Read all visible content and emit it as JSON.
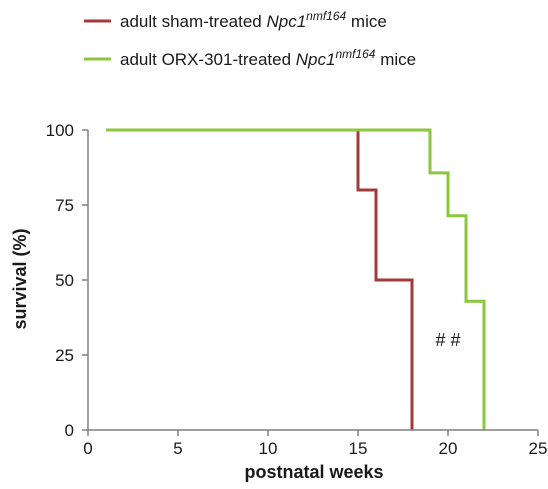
{
  "chart_data": {
    "type": "line",
    "step": true,
    "xlabel": "postnatal weeks",
    "ylabel": "survival (%)",
    "xlim": [
      0,
      25
    ],
    "ylim": [
      0,
      100
    ],
    "xticks": [
      0,
      5,
      10,
      15,
      20,
      25
    ],
    "yticks": [
      0,
      25,
      50,
      75,
      100
    ],
    "grid": false,
    "legend_position": "top-left",
    "series": [
      {
        "name": "adult sham-treated Npc1nmf164 mice",
        "label_prefix": "adult sham-treated ",
        "label_gene": "Npc1",
        "label_superscript": "nmf164",
        "label_suffix": " mice",
        "color": "#a33a3a",
        "x": [
          1,
          15,
          16,
          18
        ],
        "y": [
          100,
          80,
          50,
          0
        ]
      },
      {
        "name": "adult ORX-301-treated Npc1nmf164 mice",
        "label_prefix": "adult ORX-301-treated ",
        "label_gene": "Npc1",
        "label_superscript": "nmf164",
        "label_suffix": " mice",
        "color": "#8cc63e",
        "x": [
          1,
          19,
          20,
          21,
          22
        ],
        "y": [
          100,
          85.7,
          71.4,
          42.9,
          0
        ]
      }
    ],
    "annotations": [
      {
        "text": "# #",
        "x": 20,
        "y": 28
      }
    ]
  }
}
